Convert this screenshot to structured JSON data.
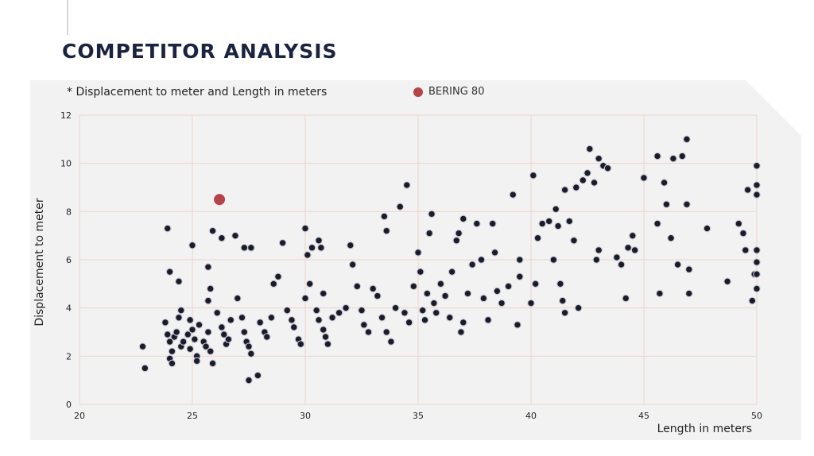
{
  "slide": {
    "title": "COMPETITOR ANALYSIS"
  },
  "chart_data": {
    "type": "scatter",
    "note": "* Displacement to meter and Length in meters",
    "xlabel": "Length in meters",
    "ylabel": "Displacement to meter",
    "xlim": [
      20,
      50
    ],
    "ylim": [
      0,
      12
    ],
    "xticks": [
      20,
      25,
      30,
      35,
      40,
      45,
      50
    ],
    "yticks": [
      0,
      2,
      4,
      6,
      8,
      10,
      12
    ],
    "grid": true,
    "colors": {
      "highlight": "#b54448",
      "points": "#1b1c2b",
      "grid": "#f0d2cc",
      "panel": "#f2f2f2"
    },
    "highlight": {
      "name": "BERING 80",
      "x": 26.2,
      "y": 8.5
    },
    "series": [
      {
        "values": [
          [
            22.8,
            2.4
          ],
          [
            22.9,
            1.5
          ],
          [
            23.9,
            7.3
          ],
          [
            24.0,
            5.5
          ],
          [
            24.4,
            5.1
          ],
          [
            23.8,
            3.4
          ],
          [
            23.9,
            2.9
          ],
          [
            24.0,
            2.6
          ],
          [
            24.1,
            2.2
          ],
          [
            24.0,
            1.9
          ],
          [
            24.1,
            1.7
          ],
          [
            24.2,
            2.8
          ],
          [
            24.3,
            3.0
          ],
          [
            24.5,
            2.4
          ],
          [
            24.6,
            2.6
          ],
          [
            24.8,
            2.9
          ],
          [
            24.9,
            2.3
          ],
          [
            25.0,
            3.1
          ],
          [
            25.1,
            2.7
          ],
          [
            25.2,
            2.0
          ],
          [
            25.2,
            1.8
          ],
          [
            24.4,
            3.6
          ],
          [
            24.5,
            3.9
          ],
          [
            24.9,
            3.5
          ],
          [
            25.3,
            3.3
          ],
          [
            25.5,
            2.6
          ],
          [
            25.6,
            2.4
          ],
          [
            25.7,
            3.0
          ],
          [
            25.8,
            2.2
          ],
          [
            25.9,
            1.7
          ],
          [
            25.0,
            6.6
          ],
          [
            25.7,
            5.7
          ],
          [
            25.9,
            7.2
          ],
          [
            25.7,
            4.3
          ],
          [
            25.8,
            4.8
          ],
          [
            26.1,
            3.8
          ],
          [
            26.3,
            3.2
          ],
          [
            26.4,
            2.9
          ],
          [
            26.5,
            2.5
          ],
          [
            26.6,
            2.7
          ],
          [
            26.7,
            3.5
          ],
          [
            26.3,
            6.9
          ],
          [
            26.9,
            7.0
          ],
          [
            27.0,
            4.4
          ],
          [
            27.2,
            3.6
          ],
          [
            27.3,
            3.0
          ],
          [
            27.4,
            2.6
          ],
          [
            27.5,
            2.4
          ],
          [
            27.6,
            2.1
          ],
          [
            27.5,
            1.0
          ],
          [
            27.3,
            6.5
          ],
          [
            27.6,
            6.5
          ],
          [
            27.9,
            1.2
          ],
          [
            28.0,
            3.4
          ],
          [
            28.2,
            3.0
          ],
          [
            28.3,
            2.8
          ],
          [
            28.5,
            3.6
          ],
          [
            28.6,
            5.0
          ],
          [
            28.8,
            5.3
          ],
          [
            29.0,
            6.7
          ],
          [
            29.2,
            3.9
          ],
          [
            29.4,
            3.5
          ],
          [
            29.5,
            3.2
          ],
          [
            29.7,
            2.7
          ],
          [
            29.8,
            2.5
          ],
          [
            30.0,
            7.3
          ],
          [
            30.1,
            6.2
          ],
          [
            30.3,
            6.5
          ],
          [
            30.0,
            4.4
          ],
          [
            30.2,
            5.0
          ],
          [
            30.6,
            6.8
          ],
          [
            30.7,
            6.5
          ],
          [
            30.8,
            4.6
          ],
          [
            30.5,
            3.9
          ],
          [
            30.6,
            3.5
          ],
          [
            30.8,
            3.1
          ],
          [
            30.9,
            2.8
          ],
          [
            31.0,
            2.5
          ],
          [
            31.2,
            3.6
          ],
          [
            31.5,
            3.8
          ],
          [
            31.8,
            4.0
          ],
          [
            32.0,
            6.6
          ],
          [
            32.1,
            5.8
          ],
          [
            32.3,
            4.9
          ],
          [
            32.5,
            3.9
          ],
          [
            32.6,
            3.3
          ],
          [
            32.8,
            3.0
          ],
          [
            33.0,
            4.8
          ],
          [
            33.2,
            4.5
          ],
          [
            33.5,
            7.8
          ],
          [
            33.6,
            7.2
          ],
          [
            33.4,
            3.6
          ],
          [
            33.6,
            3.0
          ],
          [
            33.8,
            2.6
          ],
          [
            34.0,
            4.0
          ],
          [
            34.2,
            8.2
          ],
          [
            34.5,
            9.1
          ],
          [
            34.4,
            3.8
          ],
          [
            34.6,
            3.4
          ],
          [
            34.8,
            4.9
          ],
          [
            35.0,
            6.3
          ],
          [
            35.1,
            5.5
          ],
          [
            35.2,
            3.9
          ],
          [
            35.3,
            3.5
          ],
          [
            35.5,
            7.1
          ],
          [
            35.6,
            7.9
          ],
          [
            35.4,
            4.6
          ],
          [
            35.7,
            4.2
          ],
          [
            35.8,
            3.8
          ],
          [
            36.0,
            5.0
          ],
          [
            36.2,
            4.5
          ],
          [
            36.4,
            3.6
          ],
          [
            36.5,
            5.5
          ],
          [
            36.7,
            6.8
          ],
          [
            36.8,
            7.1
          ],
          [
            37.0,
            7.7
          ],
          [
            36.9,
            3.0
          ],
          [
            37.0,
            3.4
          ],
          [
            37.2,
            4.6
          ],
          [
            37.4,
            5.8
          ],
          [
            37.6,
            7.5
          ],
          [
            37.8,
            6.0
          ],
          [
            37.9,
            4.4
          ],
          [
            38.1,
            3.5
          ],
          [
            38.3,
            7.5
          ],
          [
            38.4,
            6.3
          ],
          [
            38.5,
            4.7
          ],
          [
            38.7,
            4.2
          ],
          [
            39.0,
            4.9
          ],
          [
            39.2,
            8.7
          ],
          [
            39.4,
            3.3
          ],
          [
            39.5,
            6.0
          ],
          [
            39.5,
            5.3
          ],
          [
            40.0,
            4.2
          ],
          [
            40.2,
            5.0
          ],
          [
            40.1,
            9.5
          ],
          [
            40.3,
            6.9
          ],
          [
            40.5,
            7.5
          ],
          [
            40.8,
            7.6
          ],
          [
            41.0,
            6.0
          ],
          [
            41.1,
            8.1
          ],
          [
            41.2,
            7.4
          ],
          [
            41.3,
            5.0
          ],
          [
            41.4,
            4.3
          ],
          [
            41.5,
            3.8
          ],
          [
            41.5,
            8.9
          ],
          [
            41.7,
            7.6
          ],
          [
            41.9,
            6.8
          ],
          [
            42.0,
            9.0
          ],
          [
            42.1,
            4.0
          ],
          [
            42.3,
            9.3
          ],
          [
            42.5,
            9.6
          ],
          [
            42.6,
            10.6
          ],
          [
            42.8,
            9.2
          ],
          [
            42.9,
            6.0
          ],
          [
            43.0,
            10.2
          ],
          [
            43.2,
            9.9
          ],
          [
            43.4,
            9.8
          ],
          [
            43.0,
            6.4
          ],
          [
            43.8,
            6.1
          ],
          [
            44.0,
            5.8
          ],
          [
            44.2,
            4.4
          ],
          [
            44.3,
            6.5
          ],
          [
            44.5,
            7.0
          ],
          [
            44.6,
            6.4
          ],
          [
            45.0,
            9.4
          ],
          [
            45.6,
            10.3
          ],
          [
            45.7,
            4.6
          ],
          [
            45.6,
            7.5
          ],
          [
            45.9,
            9.2
          ],
          [
            46.0,
            8.3
          ],
          [
            46.2,
            6.9
          ],
          [
            46.3,
            10.2
          ],
          [
            46.5,
            5.8
          ],
          [
            46.7,
            10.3
          ],
          [
            46.9,
            11.0
          ],
          [
            46.9,
            8.3
          ],
          [
            47.0,
            5.6
          ],
          [
            47.0,
            4.6
          ],
          [
            47.8,
            7.3
          ],
          [
            48.7,
            5.1
          ],
          [
            49.2,
            7.5
          ],
          [
            49.4,
            7.1
          ],
          [
            49.5,
            6.4
          ],
          [
            49.6,
            8.9
          ],
          [
            49.8,
            4.3
          ],
          [
            49.9,
            5.4
          ],
          [
            50.0,
            9.9
          ],
          [
            50.0,
            9.1
          ],
          [
            50.0,
            8.7
          ],
          [
            50.0,
            6.4
          ],
          [
            50.0,
            5.9
          ],
          [
            50.0,
            5.4
          ],
          [
            50.0,
            4.8
          ]
        ]
      }
    ]
  }
}
